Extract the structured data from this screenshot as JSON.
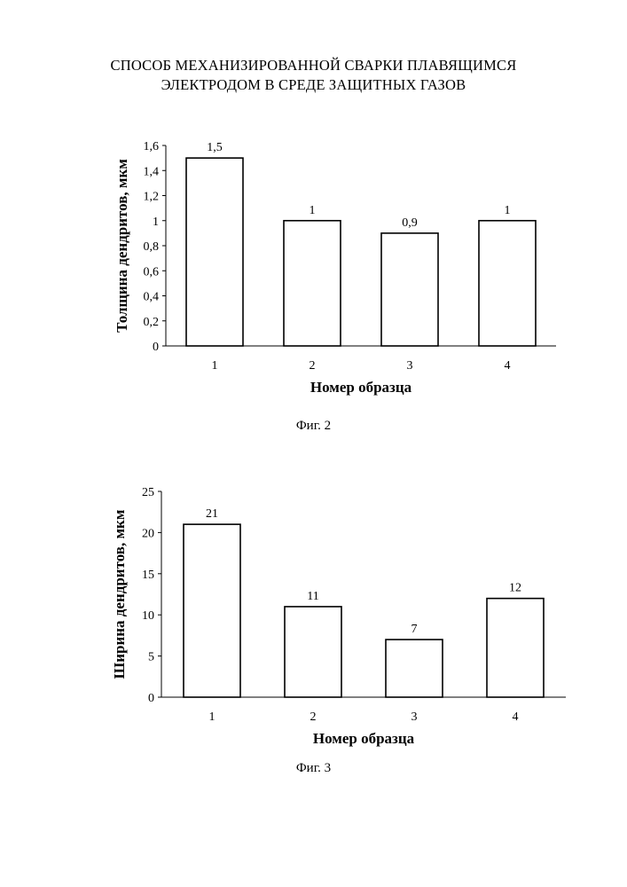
{
  "document": {
    "title_line1": "СПОСОБ МЕХАНИЗИРОВАННОЙ СВАРКИ ПЛАВЯЩИМСЯ",
    "title_line2": "ЭЛЕКТРОДОМ В СРЕДЕ ЗАЩИТНЫХ ГАЗОВ"
  },
  "chart_data": [
    {
      "type": "bar",
      "categories": [
        "1",
        "2",
        "3",
        "4"
      ],
      "values": [
        1.5,
        1,
        0.9,
        1
      ],
      "value_labels": [
        "1,5",
        "1",
        "0,9",
        "1"
      ],
      "title": "",
      "xlabel": "Номер образца",
      "ylabel": "Толщина дендритов, мкм",
      "ylim": [
        0,
        1.6
      ],
      "yticks": [
        0,
        0.2,
        0.4,
        0.6,
        0.8,
        1,
        1.2,
        1.4,
        1.6
      ],
      "ytick_labels": [
        "0",
        "0,2",
        "0,4",
        "0,6",
        "0,8",
        "1",
        "1,2",
        "1,4",
        "1,6"
      ],
      "caption": "Фиг. 2",
      "bar_fill": "#ffffff",
      "bar_stroke": "#000000",
      "grid": false
    },
    {
      "type": "bar",
      "categories": [
        "1",
        "2",
        "3",
        "4"
      ],
      "values": [
        21,
        11,
        7,
        12
      ],
      "value_labels": [
        "21",
        "11",
        "7",
        "12"
      ],
      "title": "",
      "xlabel": "Номер образца",
      "ylabel": "Ширина дендритов, мкм",
      "ylim": [
        0,
        25
      ],
      "yticks": [
        0,
        5,
        10,
        15,
        20,
        25
      ],
      "ytick_labels": [
        "0",
        "5",
        "10",
        "15",
        "20",
        "25"
      ],
      "caption": "Фиг. 3",
      "bar_fill": "#ffffff",
      "bar_stroke": "#000000",
      "grid": false
    }
  ]
}
